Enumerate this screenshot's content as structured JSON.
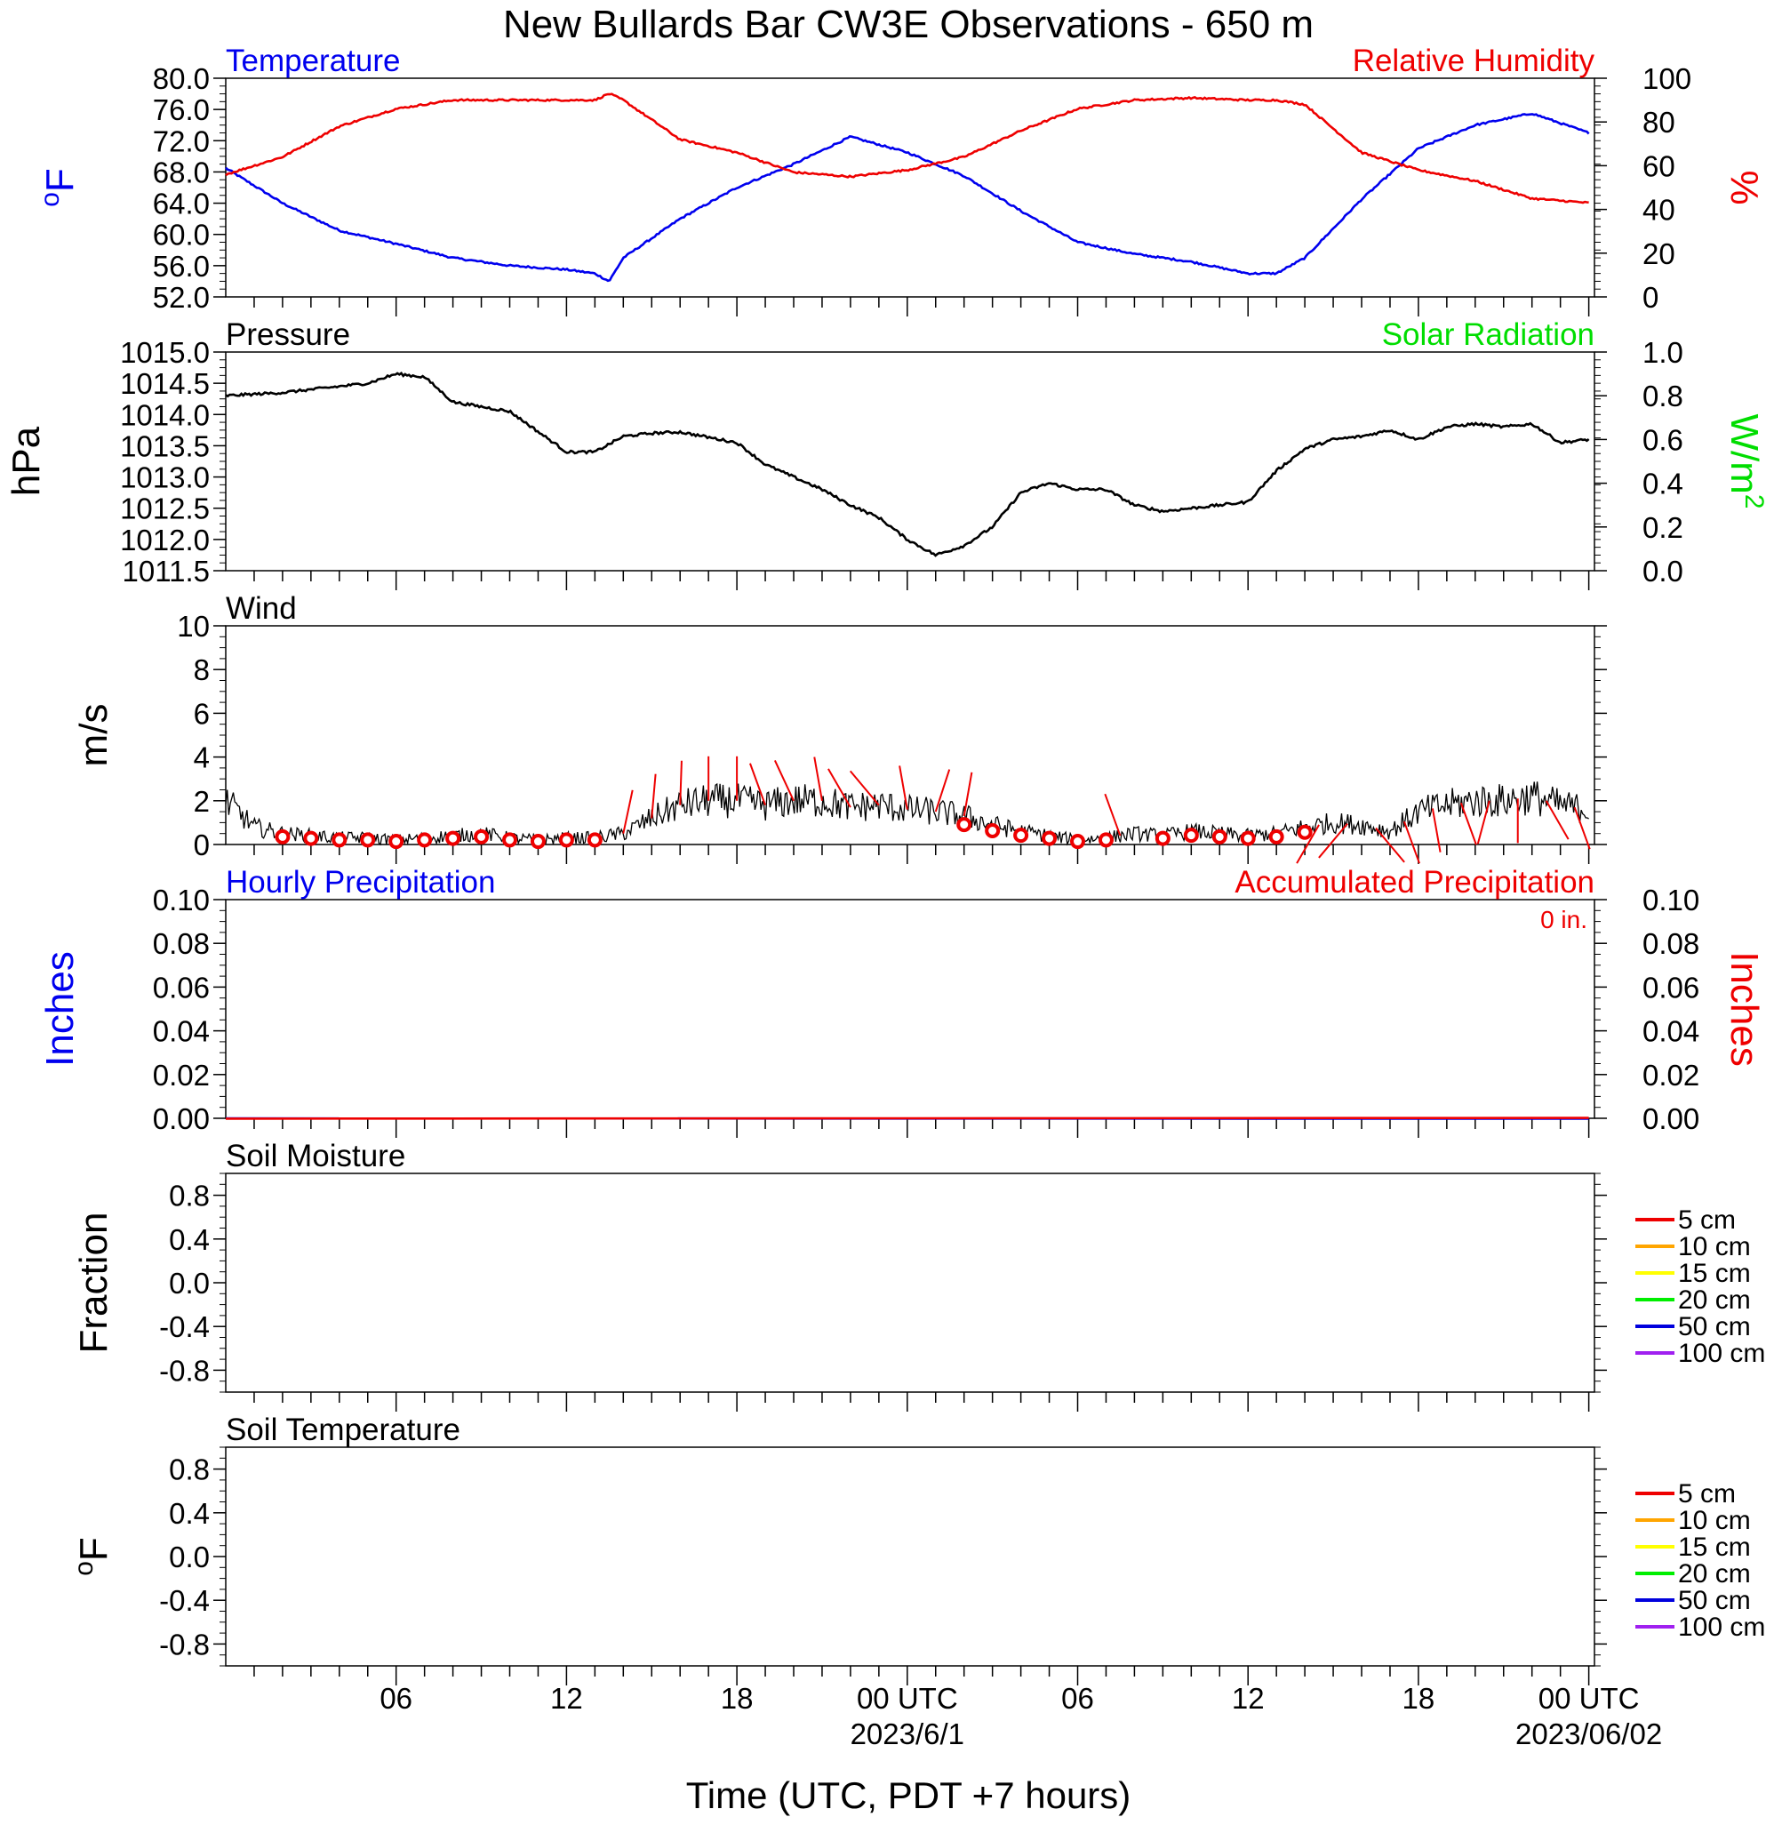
{
  "title": "New Bullards Bar CW3E Observations - 650 m",
  "xlabel": "Time (UTC, PDT +7 hours)",
  "x_ticks": [
    {
      "h": 6,
      "label": "06"
    },
    {
      "h": 12,
      "label": "12"
    },
    {
      "h": 18,
      "label": "18"
    },
    {
      "h": 24,
      "label": "00 UTC",
      "date": "2023/6/1"
    },
    {
      "h": 30,
      "label": "06"
    },
    {
      "h": 36,
      "label": "12"
    },
    {
      "h": 42,
      "label": "18"
    },
    {
      "h": 48,
      "label": "00 UTC",
      "date": "2023/06/02"
    }
  ],
  "colors": {
    "temperature": "#0000ee",
    "humidity": "#ee0000",
    "solar": "#00dd00",
    "black": "#000000",
    "wind_barb": "#ee0000"
  },
  "chart_data": [
    {
      "id": "temp_rh",
      "type": "line",
      "label_left": "Temperature",
      "label_right": "Relative Humidity",
      "ylabel_left": "oF",
      "ylabel_right": "%",
      "ylim_left": [
        52,
        80
      ],
      "ylim_right": [
        0,
        100
      ],
      "yticks_left": [
        "80.0",
        "76.0",
        "72.0",
        "68.0",
        "64.0",
        "60.0",
        "56.0",
        "52.0"
      ],
      "yticks_right": [
        "100",
        "80",
        "60",
        "40",
        "20",
        "0"
      ],
      "x": [
        0,
        2,
        4,
        6,
        8,
        10,
        12,
        13,
        13.5,
        14,
        16,
        18,
        20,
        22,
        24,
        26,
        28,
        30,
        32,
        34,
        36,
        37,
        38,
        40,
        42,
        44,
        46,
        48
      ],
      "series": [
        {
          "name": "Temperature",
          "axis": "left",
          "values": [
            68.5,
            64,
            60.5,
            58.8,
            57,
            56,
            55.5,
            55,
            54,
            57,
            62,
            66,
            69,
            72.5,
            70.5,
            67.5,
            63,
            59,
            57.5,
            56.5,
            55,
            55,
            57,
            64.5,
            71,
            74,
            75.5,
            73
          ]
        },
        {
          "name": "Relative Humidity",
          "axis": "right",
          "values": [
            56,
            64,
            78,
            86,
            90,
            90,
            90,
            90,
            93,
            90,
            72,
            66,
            57,
            55,
            58,
            64,
            76,
            86,
            90,
            91,
            90,
            90,
            88,
            66,
            58,
            53,
            45,
            43
          ]
        }
      ]
    },
    {
      "id": "pressure",
      "type": "line",
      "label_left": "Pressure",
      "label_right": "Solar Radiation",
      "ylabel_left": "hPa",
      "ylabel_right": "W/m2",
      "ylim_left": [
        1011.5,
        1015.0
      ],
      "ylim_right": [
        0.0,
        1.0
      ],
      "yticks_left": [
        "1015.0",
        "1014.5",
        "1014.0",
        "1013.5",
        "1013.0",
        "1012.5",
        "1012.0",
        "1011.5"
      ],
      "yticks_right": [
        "1.0",
        "0.8",
        "0.6",
        "0.4",
        "0.2",
        "0.0"
      ],
      "x": [
        0,
        2,
        3,
        5,
        6,
        7,
        8,
        10,
        12,
        13,
        14,
        15,
        16,
        18,
        19,
        20,
        21,
        22,
        23,
        24,
        25,
        26,
        27,
        28,
        29,
        30,
        31,
        32,
        33,
        34,
        35,
        36,
        37,
        38,
        39,
        40,
        41,
        42,
        43,
        44,
        45,
        46,
        47,
        48
      ],
      "series": [
        {
          "name": "Pressure",
          "values": [
            1014.3,
            1014.35,
            1014.4,
            1014.5,
            1014.65,
            1014.6,
            1014.2,
            1014.05,
            1013.4,
            1013.4,
            1013.65,
            1013.7,
            1013.72,
            1013.55,
            1013.2,
            1013.0,
            1012.8,
            1012.55,
            1012.35,
            1012.0,
            1011.75,
            1011.9,
            1012.2,
            1012.75,
            1012.9,
            1012.8,
            1012.8,
            1012.55,
            1012.45,
            1012.5,
            1012.55,
            1012.6,
            1013.1,
            1013.45,
            1013.6,
            1013.65,
            1013.75,
            1013.6,
            1013.8,
            1013.85,
            1013.8,
            1013.85,
            1013.55,
            1013.6
          ]
        }
      ]
    },
    {
      "id": "wind",
      "type": "line",
      "label_left": "Wind",
      "ylabel_left": "m/s",
      "ylim_left": [
        0,
        10
      ],
      "yticks_left": [
        "10",
        "8",
        "6",
        "4",
        "2",
        "0"
      ],
      "x": [
        0,
        1,
        2,
        3,
        4,
        5,
        6,
        7,
        8,
        9,
        10,
        11,
        12,
        13,
        14,
        15,
        16,
        17,
        18,
        19,
        20,
        21,
        22,
        23,
        24,
        25,
        26,
        27,
        28,
        29,
        30,
        31,
        32,
        33,
        34,
        35,
        36,
        37,
        38,
        39,
        40,
        41,
        42,
        43,
        44,
        45,
        46,
        47,
        48
      ],
      "series": [
        {
          "name": "Wind Speed",
          "values": [
            2.0,
            0.8,
            0.5,
            0.4,
            0.3,
            0.3,
            0.2,
            0.3,
            0.4,
            0.5,
            0.3,
            0.2,
            0.3,
            0.3,
            0.5,
            1.2,
            1.8,
            2.0,
            2.0,
            1.8,
            2.0,
            2.0,
            1.7,
            1.8,
            1.6,
            1.5,
            1.3,
            0.9,
            0.6,
            0.4,
            0.2,
            0.3,
            0.5,
            0.4,
            0.6,
            0.5,
            0.4,
            0.5,
            0.8,
            1.0,
            0.9,
            0.6,
            1.5,
            1.8,
            2.0,
            2.0,
            2.2,
            1.8,
            1.6
          ]
        }
      ],
      "calm_hours": [
        2,
        3,
        4,
        5,
        6,
        7,
        8,
        9,
        10,
        11,
        12,
        13,
        26,
        27,
        28,
        29,
        30,
        31,
        33,
        34,
        35,
        36,
        37,
        38
      ],
      "barbs": [
        {
          "h": 14.0,
          "dir": 12
        },
        {
          "h": 15.0,
          "dir": 5
        },
        {
          "h": 16.0,
          "dir": 2
        },
        {
          "h": 17.0,
          "dir": 0
        },
        {
          "h": 18.0,
          "dir": 0
        },
        {
          "h": 19.0,
          "dir": 340
        },
        {
          "h": 20.0,
          "dir": 335
        },
        {
          "h": 21.0,
          "dir": 350
        },
        {
          "h": 22.0,
          "dir": 330
        },
        {
          "h": 23.0,
          "dir": 320
        },
        {
          "h": 24.0,
          "dir": 350
        },
        {
          "h": 25.0,
          "dir": 18
        },
        {
          "h": 26.0,
          "dir": 10
        },
        {
          "h": 31.5,
          "dir": 340
        },
        {
          "h": 38.5,
          "dir": 210
        },
        {
          "h": 39.5,
          "dir": 220
        },
        {
          "h": 40.5,
          "dir": 140
        },
        {
          "h": 41.5,
          "dir": 160
        },
        {
          "h": 42.5,
          "dir": 170
        },
        {
          "h": 43.5,
          "dir": 160
        },
        {
          "h": 44.5,
          "dir": 195
        },
        {
          "h": 45.5,
          "dir": 180
        },
        {
          "h": 46.5,
          "dir": 150
        },
        {
          "h": 47.5,
          "dir": 160
        }
      ]
    },
    {
      "id": "precip",
      "type": "line",
      "label_left": "Hourly Precipitation",
      "label_right": "Accumulated Precipitation",
      "annotation": "0 in.",
      "ylabel_left": "Inches",
      "ylabel_right": "Inches",
      "ylim_left": [
        0,
        0.1
      ],
      "ylim_right": [
        0,
        0.1
      ],
      "yticks_left": [
        "0.10",
        "0.08",
        "0.06",
        "0.04",
        "0.02",
        "0.00"
      ],
      "yticks_right": [
        "0.10",
        "0.08",
        "0.06",
        "0.04",
        "0.02",
        "0.00"
      ],
      "x": [
        0,
        48
      ],
      "series": [
        {
          "name": "Hourly Precipitation",
          "values": [
            0,
            0
          ]
        },
        {
          "name": "Accumulated Precipitation",
          "values": [
            0,
            0
          ]
        }
      ]
    },
    {
      "id": "soil_moisture",
      "type": "line",
      "label_left": "Soil Moisture",
      "ylabel_left": "Fraction",
      "ylim_left": [
        -1,
        1
      ],
      "yticks_left": [
        "0.8",
        "0.4",
        "0.0",
        "-0.4",
        "-0.8"
      ],
      "legend": [
        {
          "name": "5 cm",
          "color": "#ee0000"
        },
        {
          "name": "10 cm",
          "color": "#ffa500"
        },
        {
          "name": "15 cm",
          "color": "#ffff00"
        },
        {
          "name": "20 cm",
          "color": "#00ee00"
        },
        {
          "name": "50 cm",
          "color": "#0000dd"
        },
        {
          "name": "100 cm",
          "color": "#a020f0"
        }
      ]
    },
    {
      "id": "soil_temp",
      "type": "line",
      "label_left": "Soil Temperature",
      "ylabel_left": "oF",
      "ylim_left": [
        -1,
        1
      ],
      "yticks_left": [
        "0.8",
        "0.4",
        "0.0",
        "-0.4",
        "-0.8"
      ],
      "legend": [
        {
          "name": "5 cm",
          "color": "#ee0000"
        },
        {
          "name": "10 cm",
          "color": "#ffa500"
        },
        {
          "name": "15 cm",
          "color": "#ffff00"
        },
        {
          "name": "20 cm",
          "color": "#00ee00"
        },
        {
          "name": "50 cm",
          "color": "#0000dd"
        },
        {
          "name": "100 cm",
          "color": "#a020f0"
        }
      ]
    }
  ]
}
